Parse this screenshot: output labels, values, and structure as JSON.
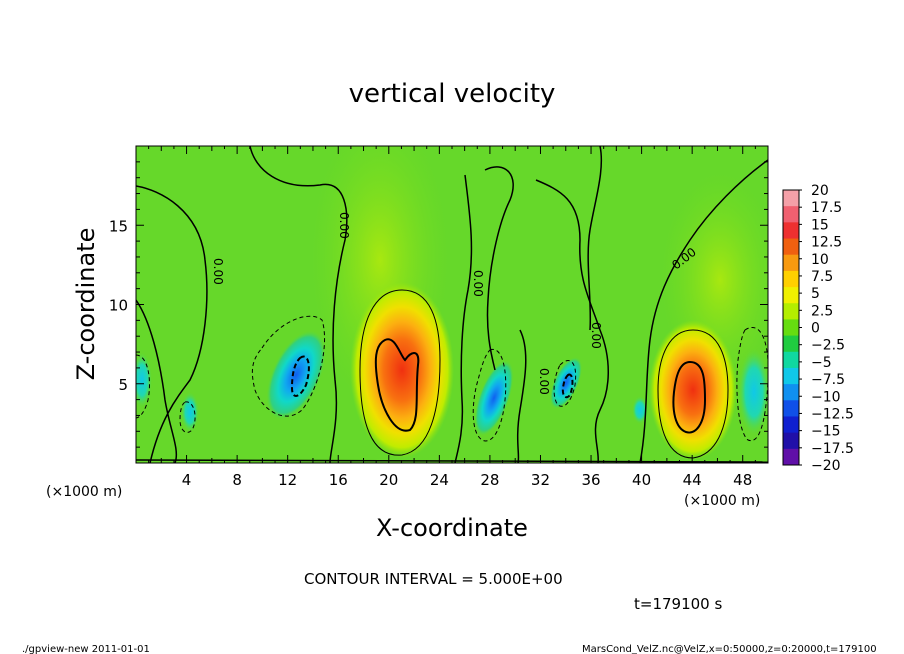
{
  "chart_data": {
    "type": "heatmap",
    "title": "vertical velocity",
    "xlabel": "X-coordinate",
    "ylabel": "Z-coordinate",
    "x_unit": "(×1000 m)",
    "y_unit": "(×1000 m)",
    "x_range": [
      0,
      50
    ],
    "y_range": [
      0,
      20
    ],
    "x_ticks": [
      "4",
      "8",
      "12",
      "16",
      "20",
      "24",
      "28",
      "32",
      "36",
      "40",
      "44",
      "48"
    ],
    "y_ticks": [
      "5",
      "10",
      "15"
    ],
    "contour_label": "0.00",
    "contour_interval_text": "CONTOUR INTERVAL = 5.000E+00",
    "time_text": "t=179100 s",
    "colorbar": {
      "labels": [
        "20",
        "17.5",
        "15",
        "12.5",
        "10",
        "7.5",
        "5",
        "2.5",
        "0",
        "−2.5",
        "−5",
        "−7.5",
        "−10",
        "−12.5",
        "−15",
        "−17.5",
        "−20"
      ],
      "colors": [
        "#f4a0a8",
        "#f06070",
        "#ee3030",
        "#f06010",
        "#f89a10",
        "#ffd000",
        "#f0f000",
        "#b4ee00",
        "#66dd10",
        "#20cc40",
        "#10d8a0",
        "#10c8e8",
        "#1090f0",
        "#1050e8",
        "#1020d0",
        "#2010a8",
        "#6010a8"
      ]
    },
    "features": [
      {
        "kind": "updraft",
        "x": 20.5,
        "z": 5.5,
        "max": 12.5
      },
      {
        "kind": "updraft",
        "x": 43.5,
        "z": 4.5,
        "max": 12.5
      },
      {
        "kind": "downdraft",
        "x": 13.0,
        "z": 5.5,
        "min": -10
      },
      {
        "kind": "downdraft",
        "x": 29.0,
        "z": 3.5,
        "min": -7.5
      },
      {
        "kind": "downdraft",
        "x": 33.5,
        "z": 4.5,
        "min": -7.5
      },
      {
        "kind": "downdraft",
        "x": 48.5,
        "z": 4.0,
        "min": -5
      },
      {
        "kind": "downdraft",
        "x": 1.0,
        "z": 5.0,
        "min": -5
      }
    ]
  },
  "footer": {
    "left": "./gpview-new   2011-01-01",
    "right": "MarsCond_VelZ.nc@VelZ,x=0:50000,z=0:20000,t=179100"
  }
}
